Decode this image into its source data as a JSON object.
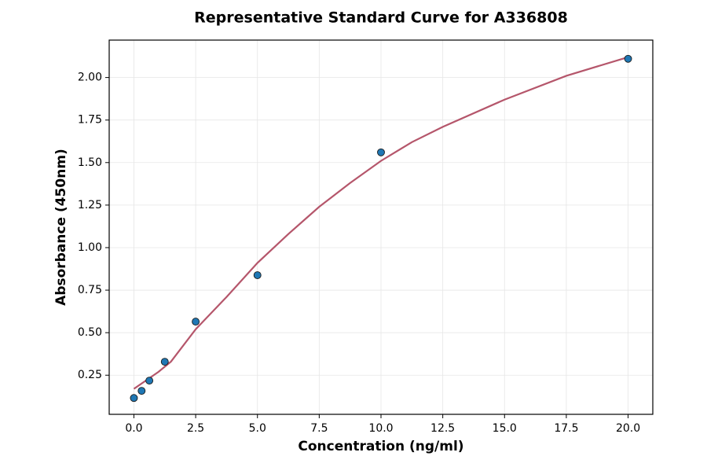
{
  "chart_data": {
    "type": "scatter",
    "title": "Representative Standard Curve for A336808",
    "x_label": "Concentration (ng/ml)",
    "y_label": "Absorbance (450nm)",
    "xlim": [
      -1.0,
      21.0
    ],
    "ylim": [
      0.02,
      2.22
    ],
    "xticks": [
      {
        "value": 0,
        "label": "0.0"
      },
      2.5,
      {
        "value": 5,
        "label": "5.0"
      },
      7.5,
      {
        "value": 10,
        "label": "10.0"
      },
      12.5,
      {
        "value": 15,
        "label": "15.0"
      },
      17.5,
      {
        "value": 20,
        "label": "20.0"
      }
    ],
    "yticks": [
      0.25,
      {
        "value": 0.5,
        "label": "0.50"
      },
      0.75,
      {
        "value": 1,
        "label": "1.00"
      },
      1.25,
      {
        "value": 1.5,
        "label": "1.50"
      },
      1.75,
      {
        "value": 2,
        "label": "2.00"
      }
    ],
    "grid": true,
    "series": [
      {
        "type": "line",
        "color": "#b5566b",
        "x": [
          0,
          0.5,
          1,
          1.5,
          2.5,
          3.75,
          5,
          6.25,
          7.5,
          8.75,
          10,
          11.25,
          12.5,
          15,
          17.5,
          20
        ],
        "values": [
          0.17,
          0.22,
          0.27,
          0.33,
          0.52,
          0.71,
          0.91,
          1.08,
          1.24,
          1.38,
          1.51,
          1.62,
          1.71,
          1.87,
          2.01,
          2.12
        ]
      },
      {
        "type": "scatter",
        "color": "#1f77b4",
        "x": [
          0,
          0.3125,
          0.625,
          1.25,
          2.5,
          5,
          10,
          20
        ],
        "values": [
          0.116,
          0.158,
          0.218,
          0.329,
          0.565,
          0.838,
          1.56,
          2.11
        ]
      }
    ]
  }
}
